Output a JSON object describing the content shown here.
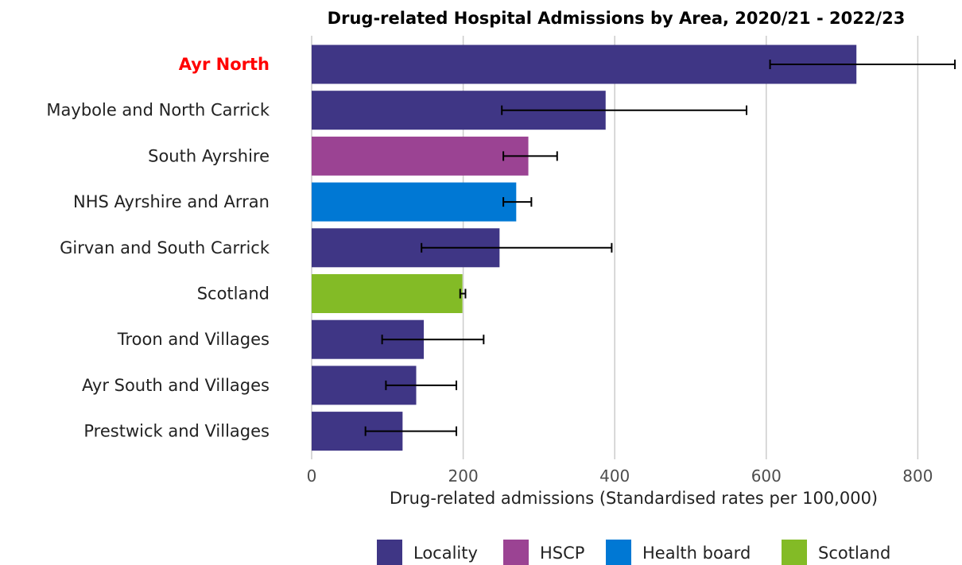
{
  "chart_data": {
    "type": "bar",
    "orientation": "horizontal",
    "title": "Drug-related Hospital Admissions by Area, 2020/21 - 2022/23",
    "xlabel": "Drug-related admissions (Standardised rates per 100,000)",
    "ylabel": "",
    "xlim": [
      0,
      850
    ],
    "xticks": [
      "0",
      "200",
      "400",
      "600",
      "800"
    ],
    "xtick_values": [
      0,
      200,
      400,
      600,
      800
    ],
    "grid": true,
    "legend_position": "bottom",
    "highlight": "Ayr North",
    "highlight_color": "#ff0000",
    "colors": {
      "Locality": "#3f3685",
      "HSCP": "#9b4393",
      "Health board": "#0078d4",
      "Scotland": "#83bb26"
    },
    "legend": [
      "Locality",
      "HSCP",
      "Health board",
      "Scotland"
    ],
    "bars": [
      {
        "label": "Ayr North",
        "group": "Locality",
        "value": 719,
        "ci_low": 605,
        "ci_high": 849
      },
      {
        "label": "Maybole and North Carrick",
        "group": "Locality",
        "value": 388,
        "ci_low": 251,
        "ci_high": 574
      },
      {
        "label": "South Ayrshire",
        "group": "HSCP",
        "value": 286,
        "ci_low": 253,
        "ci_high": 324
      },
      {
        "label": "NHS Ayrshire and Arran",
        "group": "Health board",
        "value": 270,
        "ci_low": 253,
        "ci_high": 290
      },
      {
        "label": "Girvan and South Carrick",
        "group": "Locality",
        "value": 248,
        "ci_low": 145,
        "ci_high": 396
      },
      {
        "label": "Scotland",
        "group": "Scotland",
        "value": 199,
        "ci_low": 196,
        "ci_high": 203
      },
      {
        "label": "Troon and Villages",
        "group": "Locality",
        "value": 148,
        "ci_low": 93,
        "ci_high": 227
      },
      {
        "label": "Ayr South and Villages",
        "group": "Locality",
        "value": 138,
        "ci_low": 98,
        "ci_high": 191
      },
      {
        "label": "Prestwick and Villages",
        "group": "Locality",
        "value": 120,
        "ci_low": 71,
        "ci_high": 191
      }
    ]
  }
}
